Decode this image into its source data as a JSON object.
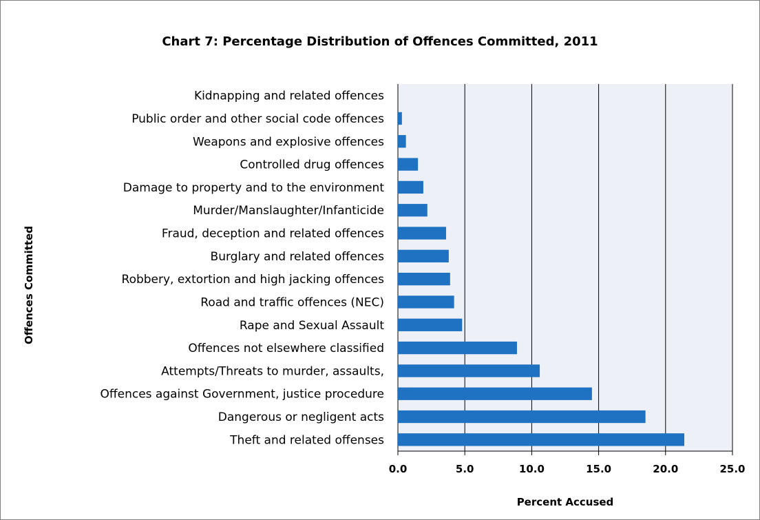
{
  "chart_data": {
    "type": "bar",
    "orientation": "horizontal",
    "title": "Chart 7: Percentage Distribution of Offences Committed, 2011",
    "xlabel": "Percent Accused",
    "ylabel": "Offences Committed",
    "xlim": [
      0,
      25
    ],
    "xticks": [
      "0.0",
      "5.0",
      "10.0",
      "15.0",
      "20.0",
      "25.0"
    ],
    "grid": "vertical",
    "legend": "none",
    "bar_color": "#1f72c1",
    "plot_background": "#eef0f8",
    "categories": [
      "Kidnapping and related offences",
      "Public order and other social code offences",
      "Weapons and explosive offences",
      "Controlled drug offences",
      "Damage to property and to the environment",
      "Murder/Manslaughter/Infanticide",
      "Fraud, deception and related offences",
      "Burglary and related offences",
      "Robbery, extortion and high jacking offences",
      "Road and traffic offences (NEC)",
      "Rape and Sexual Assault",
      "Offences not elsewhere classified",
      "Attempts/Threats to murder, assaults,",
      "Offences against Government, justice procedure",
      "Dangerous or negligent acts",
      "Theft and related offenses"
    ],
    "values": [
      0.0,
      0.3,
      0.6,
      1.5,
      1.9,
      2.2,
      3.6,
      3.8,
      3.9,
      4.2,
      4.8,
      8.9,
      10.6,
      14.5,
      18.5,
      21.4
    ]
  }
}
